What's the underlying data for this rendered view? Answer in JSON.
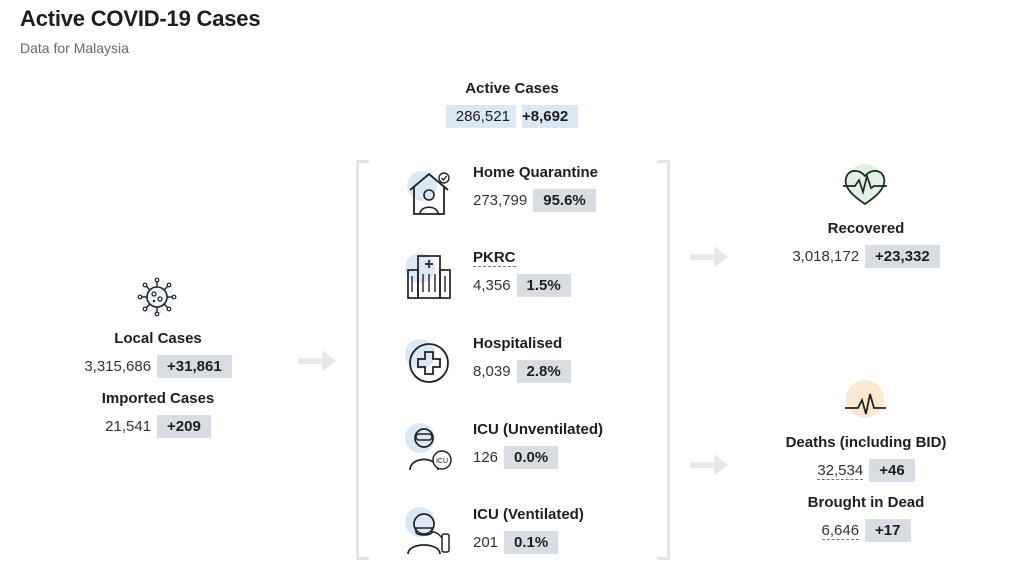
{
  "header": {
    "title": "Active COVID-19 Cases",
    "subtitle": "Data for Malaysia"
  },
  "active": {
    "label": "Active Cases",
    "value": "286,521",
    "change": "+8,692"
  },
  "local": {
    "label": "Local Cases",
    "value": "3,315,686",
    "change": "+31,861"
  },
  "imported": {
    "label": "Imported Cases",
    "value": "21,541",
    "change": "+209"
  },
  "categories": [
    {
      "label": "Home Quarantine",
      "value": "273,799",
      "pct": "95.6%",
      "icon": "home-quarantine-icon"
    },
    {
      "label": "PKRC",
      "value": "4,356",
      "pct": "1.5%",
      "icon": "hospital-building-icon"
    },
    {
      "label": "Hospitalised",
      "value": "8,039",
      "pct": "2.8%",
      "icon": "medical-cross-icon"
    },
    {
      "label": "ICU (Unventilated)",
      "value": "126",
      "pct": "0.0%",
      "icon": "icu-doctor-icon"
    },
    {
      "label": "ICU (Ventilated)",
      "value": "201",
      "pct": "0.1%",
      "icon": "icu-ventilator-icon"
    }
  ],
  "recovered": {
    "label": "Recovered",
    "value": "3,018,172",
    "change": "+23,332"
  },
  "deaths": {
    "label": "Deaths (including BID)",
    "value": "32,534",
    "change": "+46"
  },
  "bid": {
    "label": "Brought in Dead",
    "value": "6,646",
    "change": "+17"
  },
  "colors": {
    "pill": "#d8dde3",
    "pill_active": "#dbe9f7",
    "icon_circle_blue": "#dbe9f7",
    "icon_circle_green": "#dff3e4",
    "icon_circle_orange": "#fde9cf"
  }
}
